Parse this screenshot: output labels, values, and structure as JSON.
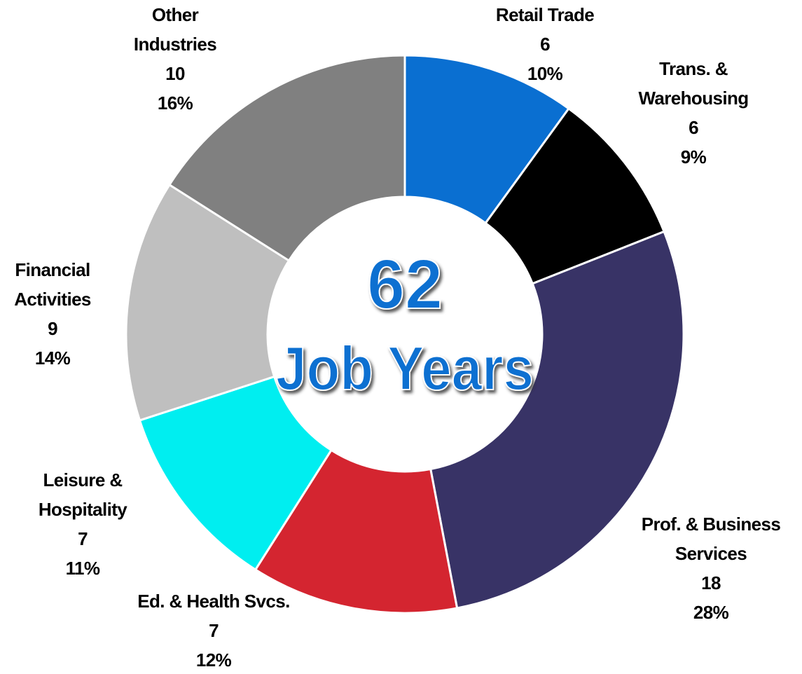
{
  "chart_data": {
    "type": "donut",
    "categories": [
      "Retail Trade",
      "Trans. &\nWarehousing",
      "Prof. & Business\nServices",
      "Ed. & Health Svcs.",
      "Leisure &\nHospitality",
      "Financial\nActivities",
      "Other\nIndustries"
    ],
    "values": [
      10,
      9,
      28,
      12,
      11,
      14,
      16
    ],
    "value_labels": [
      "10%",
      "9%",
      "28%",
      "12%",
      "11%",
      "14%",
      "16%"
    ],
    "counts": [
      6,
      6,
      18,
      7,
      7,
      9,
      10
    ],
    "colors": [
      "#0a6fd1",
      "#000000",
      "#383366",
      "#d42530",
      "#00eef0",
      "#bfbfbf",
      "#808080"
    ],
    "total": 62,
    "total_label": "Job Years"
  }
}
